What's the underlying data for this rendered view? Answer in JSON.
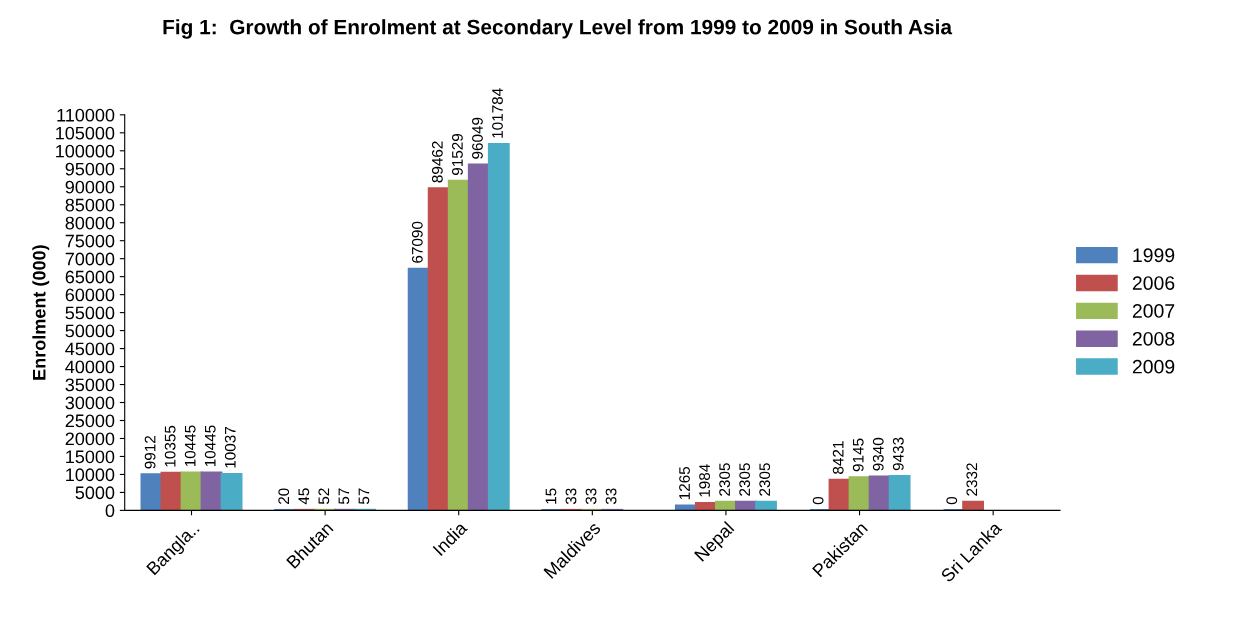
{
  "chart_data": {
    "type": "bar",
    "title": "Fig 1:  Growth of Enrolment at Secondary Level from 1999 to 2009 in South Asia",
    "ylabel": "Enrolment (000)",
    "categories": [
      "Bangla..",
      "Bhutan",
      "India",
      "Maldives",
      "Nepal",
      "Pakistan",
      "Sri Lanka"
    ],
    "series": [
      {
        "name": "1999",
        "color": "#4f81bd",
        "values": [
          9912,
          20,
          67090,
          15,
          1265,
          0,
          0
        ]
      },
      {
        "name": "2006",
        "color": "#c0504d",
        "values": [
          10355,
          45,
          89462,
          33,
          1984,
          8421,
          2332
        ]
      },
      {
        "name": "2007",
        "color": "#9bbb59",
        "values": [
          10445,
          52,
          91529,
          33,
          2305,
          9145,
          null
        ]
      },
      {
        "name": "2008",
        "color": "#8064a2",
        "values": [
          10445,
          57,
          96049,
          33,
          2305,
          9340,
          null
        ]
      },
      {
        "name": "2009",
        "color": "#4bacc6",
        "values": [
          10037,
          57,
          101784,
          null,
          2305,
          9433,
          null
        ]
      }
    ],
    "ylim": [
      0,
      110000
    ],
    "yticks": [
      0,
      5000,
      10000,
      15000,
      20000,
      25000,
      30000,
      35000,
      40000,
      45000,
      50000,
      55000,
      60000,
      65000,
      70000,
      75000,
      80000,
      85000,
      90000,
      95000,
      100000,
      105000,
      110000
    ],
    "data_labels": true,
    "grid": false,
    "legend": "right"
  }
}
